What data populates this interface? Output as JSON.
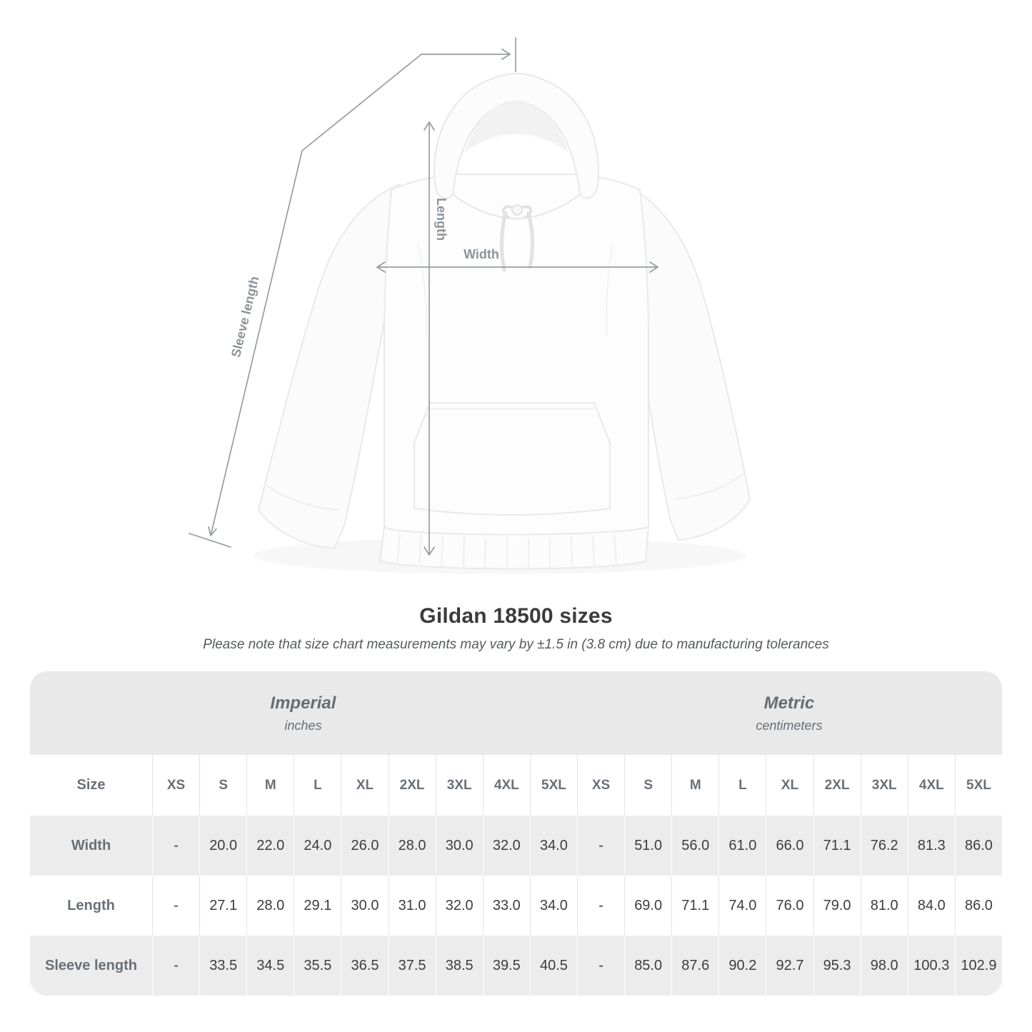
{
  "diagram": {
    "length_label": "Length",
    "width_label": "Width",
    "sleeve_label": "Sleeve length"
  },
  "chart_data": {
    "type": "table",
    "title": "Gildan 18500 sizes",
    "note": "Please note that size chart measurements may vary by ±1.5 in (3.8 cm) due to manufacturing tolerances",
    "unit_groups": [
      {
        "name": "Imperial",
        "unit": "inches"
      },
      {
        "name": "Metric",
        "unit": "centimeters"
      }
    ],
    "size_column_label": "Size",
    "sizes": [
      "XS",
      "S",
      "M",
      "L",
      "XL",
      "2XL",
      "3XL",
      "4XL",
      "5XL"
    ],
    "rows": [
      {
        "label": "Width",
        "imperial": [
          "-",
          "20.0",
          "22.0",
          "24.0",
          "26.0",
          "28.0",
          "30.0",
          "32.0",
          "34.0"
        ],
        "metric": [
          "-",
          "51.0",
          "56.0",
          "61.0",
          "66.0",
          "71.1",
          "76.2",
          "81.3",
          "86.0"
        ]
      },
      {
        "label": "Length",
        "imperial": [
          "-",
          "27.1",
          "28.0",
          "29.1",
          "30.0",
          "31.0",
          "32.0",
          "33.0",
          "34.0"
        ],
        "metric": [
          "-",
          "69.0",
          "71.1",
          "74.0",
          "76.0",
          "79.0",
          "81.0",
          "84.0",
          "86.0"
        ]
      },
      {
        "label": "Sleeve length",
        "imperial": [
          "-",
          "33.5",
          "34.5",
          "35.5",
          "36.5",
          "37.5",
          "38.5",
          "39.5",
          "40.5"
        ],
        "metric": [
          "-",
          "85.0",
          "87.6",
          "90.2",
          "92.7",
          "95.3",
          "98.0",
          "100.3",
          "102.9"
        ]
      }
    ]
  },
  "colors": {
    "band_bg": "#e9e9e9",
    "stripe_bg": "#ececec",
    "heading_text": "#6a7076",
    "value_text": "#3d3d3d",
    "measure_line": "#979da2",
    "measure_label": "#8d9399"
  }
}
